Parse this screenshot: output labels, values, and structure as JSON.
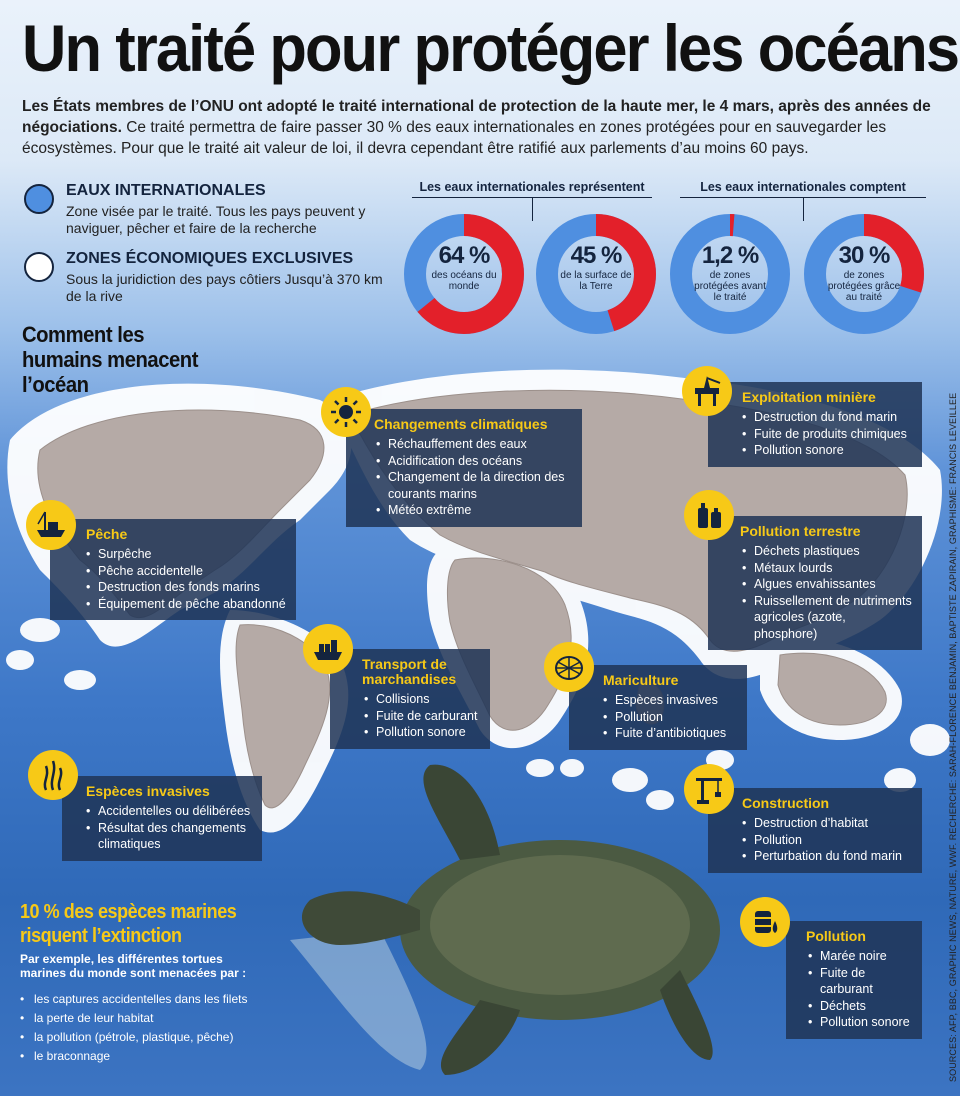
{
  "title": "Un traité pour protéger les océans",
  "intro": {
    "bold": "Les États membres de l’ONU ont adopté le traité international de protection de la haute mer, le 4 mars, après des années de négociations.",
    "rest": " Ce traité permettra de faire passer 30 % des eaux internationales en zones protégées pour en sauvegarder les écosystèmes. Pour que le traité ait valeur de loi, il devra cependant être ratifié aux parlements d’au moins 60 pays."
  },
  "colors": {
    "blue": "#4f8fe0",
    "red": "#e3202a",
    "yellow": "#f7c917",
    "navy": "#14243e"
  },
  "legend": [
    {
      "title": "EAUX INTERNATIONALES",
      "desc": "Zone visée par le traité. Tous les pays peuvent y naviguer, pêcher et faire de la recherche"
    },
    {
      "title": "ZONES ÉCONOMIQUES EXCLUSIVES",
      "desc": "Sous la juridiction des pays côtiers Jusqu’à 370 km de la rive"
    }
  ],
  "donut_groups": [
    "Les eaux internationales représentent",
    "Les eaux internationales comptent"
  ],
  "donuts": [
    {
      "value_text": "64 %",
      "label": "des océans du monde",
      "fraction": 0.64
    },
    {
      "value_text": "45 %",
      "label": "de la surface de la Terre",
      "fraction": 0.45
    },
    {
      "value_text": "1,2 %",
      "label": "de zones protégées avant le traité",
      "fraction": 0.012
    },
    {
      "value_text": "30 %",
      "label": "de zones protégées grâce au traité",
      "fraction": 0.3
    }
  ],
  "threats_heading": "Comment les humains menacent l’océan",
  "threats": [
    {
      "icon": "sun-icon",
      "title": "Changements climatiques",
      "items": [
        "Réchauffement des eaux",
        "Acidification des océans",
        "Changement de la direction des courants marins",
        "Météo extrême"
      ]
    },
    {
      "icon": "oil-rig-icon",
      "title": "Exploitation minière",
      "items": [
        "Destruction du fond marin",
        "Fuite de produits chimiques",
        "Pollution sonore"
      ]
    },
    {
      "icon": "fishing-boat-icon",
      "title": "Pêche",
      "items": [
        "Surpêche",
        "Pêche accidentelle",
        "Destruction des fonds marins",
        "Équipement de pêche abandonné"
      ]
    },
    {
      "icon": "bottles-icon",
      "title": "Pollution terrestre",
      "items": [
        "Déchets plastiques",
        "Métaux lourds",
        "Algues envahissantes",
        "Ruissellement de nutriments agricoles (azote, phosphore)"
      ]
    },
    {
      "icon": "cargo-ship-icon",
      "title": "Transport de marchandises",
      "items": [
        "Collisions",
        "Fuite de carburant",
        "Pollution sonore"
      ]
    },
    {
      "icon": "fish-farm-icon",
      "title": "Mariculture",
      "items": [
        "Espèces invasives",
        "Pollution",
        "Fuite d’antibiotiques"
      ]
    },
    {
      "icon": "seaweed-icon",
      "title": "Espèces invasives",
      "items": [
        "Accidentelles ou délibérées",
        "Résultat des changements climatiques"
      ]
    },
    {
      "icon": "crane-icon",
      "title": "Construction",
      "items": [
        "Destruction d’habitat",
        "Pollution",
        "Perturbation du fond marin"
      ]
    },
    {
      "icon": "oil-barrel-icon",
      "title": "Pollution",
      "items": [
        "Marée noire",
        "Fuite de carburant",
        "Déchets",
        "Pollution sonore"
      ]
    }
  ],
  "extinction": {
    "title": "10 % des espèces marines risquent l’extinction",
    "subtitle": "Par exemple, les différentes tortues marines du monde sont menacées par :",
    "items": [
      "les captures accidentelles dans les filets",
      "la perte de leur habitat",
      "la pollution (pétrole, plastique, pêche)",
      "le braconnage"
    ]
  },
  "sources": "SOURCES: AFP, BBC, GRAPHIC NEWS, NATURE, WWF.  RECHERCHE: SARAH-FLORENCE BENJAMIN, BAPTISTE ZAPIRAIN, GRAPHISME: FRANCIS LEVEILLEE"
}
